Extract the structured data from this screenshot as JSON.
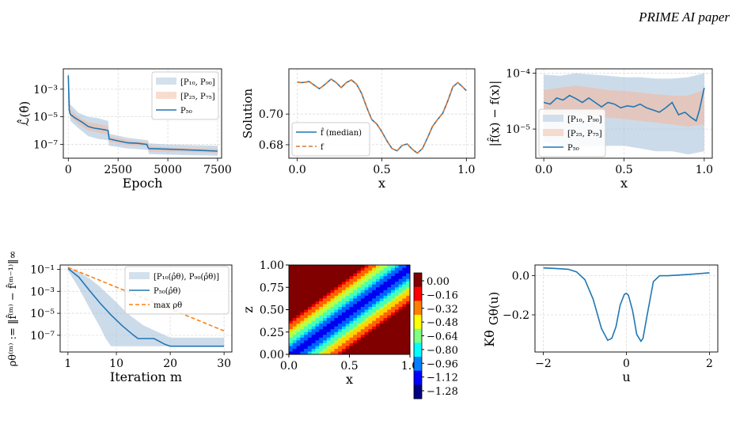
{
  "header": {
    "running_title": "PRIME AI paper"
  },
  "chart_data": [
    {
      "id": "loss",
      "type": "line",
      "ylabel": "ℒ̂(θ̂)",
      "xlabel": "Epoch",
      "ylog": true,
      "ylim": [
        1e-08,
        0.03
      ],
      "xlim": [
        -250,
        7700
      ],
      "xticks": [
        0,
        2500,
        5000,
        7500
      ],
      "xtick_labels": [
        "0",
        "2500",
        "5000",
        "7500"
      ],
      "yticks": [
        1e-07,
        1e-05,
        0.001
      ],
      "ytick_labels": [
        "10⁻⁷",
        "10⁻⁵",
        "10⁻³"
      ],
      "legend": {
        "position": "top-right",
        "entries": [
          "[P₁₀, P₉₀]",
          "[P₂₅, P₇₅]",
          "P₅₀"
        ]
      },
      "series": [
        {
          "name": "P₅₀",
          "x": [
            0,
            50,
            100,
            200,
            300,
            500,
            700,
            1000,
            1300,
            1600,
            1900,
            2000,
            2050,
            2500,
            3000,
            3500,
            3950,
            4000,
            4050,
            5000,
            6000,
            7000,
            7500
          ],
          "y": [
            0.01,
            3e-05,
            1.5e-05,
            1.2e-05,
            9e-06,
            6e-06,
            4e-06,
            2e-06,
            1.5e-06,
            1.3e-06,
            1.1e-06,
            1e-06,
            2.5e-07,
            1.8e-07,
            1.3e-07,
            1.2e-07,
            1e-07,
            6e-08,
            5e-08,
            4.5e-08,
            4e-08,
            3.5e-08,
            3.3e-08
          ]
        },
        {
          "name": "[P₁₀, P₉₀]",
          "x": [
            0,
            100,
            500,
            1000,
            1500,
            2000,
            2050,
            3000,
            4000,
            4050,
            5000,
            7500
          ],
          "low": [
            0.008,
            5e-06,
            1.5e-06,
            4e-07,
            2.5e-07,
            2e-07,
            8e-08,
            5e-08,
            4e-08,
            2e-08,
            1.8e-08,
            1.5e-08
          ],
          "high": [
            0.012,
            8e-05,
            2e-05,
            1e-05,
            8e-06,
            5e-06,
            6e-07,
            3e-07,
            2e-07,
            1.2e-07,
            1e-07,
            8e-08
          ]
        },
        {
          "name": "[P₂₅, P₇₅]",
          "x": [
            0,
            100,
            500,
            1000,
            1500,
            2000,
            2050,
            3000,
            4000,
            4050,
            5000,
            7500
          ],
          "low": [
            0.009,
            1e-05,
            3e-06,
            1e-06,
            7e-07,
            5e-07,
            1.5e-07,
            9e-08,
            7e-08,
            3e-08,
            3e-08,
            2.5e-08
          ],
          "high": [
            0.011,
            4e-05,
            1e-05,
            4e-06,
            3e-06,
            2.2e-06,
            4e-07,
            2e-07,
            1.4e-07,
            8e-08,
            6e-08,
            5e-08
          ]
        }
      ]
    },
    {
      "id": "solution",
      "type": "line",
      "ylabel": "Solution",
      "xlabel": "x",
      "ylim": [
        0.6712,
        0.7295
      ],
      "xlim": [
        -0.05,
        1.05
      ],
      "xticks": [
        0,
        0.5,
        1
      ],
      "xtick_labels": [
        "0.0",
        "0.5",
        "1.0"
      ],
      "yticks": [
        0.68,
        0.7
      ],
      "ytick_labels": [
        "0.68",
        "0.70"
      ],
      "legend": {
        "position": "bottom-left",
        "entries": [
          "f̂ (median)",
          "f"
        ]
      },
      "series": [
        {
          "name": "f̂ (median)",
          "color": "#1f77b4",
          "x": [
            0,
            0.03,
            0.07,
            0.1,
            0.13,
            0.16,
            0.2,
            0.23,
            0.26,
            0.29,
            0.32,
            0.35,
            0.38,
            0.41,
            0.44,
            0.47,
            0.5,
            0.53,
            0.56,
            0.59,
            0.62,
            0.65,
            0.68,
            0.71,
            0.74,
            0.77,
            0.8,
            0.83,
            0.86,
            0.89,
            0.92,
            0.95,
            0.98,
            1.0
          ],
          "y": [
            0.7208,
            0.7205,
            0.7212,
            0.7188,
            0.7165,
            0.719,
            0.7228,
            0.7205,
            0.7172,
            0.7205,
            0.7222,
            0.7195,
            0.7135,
            0.7045,
            0.6965,
            0.6935,
            0.6885,
            0.6825,
            0.6775,
            0.676,
            0.6795,
            0.6805,
            0.677,
            0.6745,
            0.6775,
            0.6845,
            0.692,
            0.6965,
            0.7005,
            0.7085,
            0.7178,
            0.7205,
            0.7175,
            0.7152
          ]
        },
        {
          "name": "f",
          "color": "#e0782f",
          "dash": true,
          "same_as": 0
        }
      ]
    },
    {
      "id": "abs-error",
      "type": "line",
      "ylabel": "|f̂(x) − f(x)|",
      "xlabel": "x",
      "ylog": true,
      "ylim": [
        3e-06,
        0.00012
      ],
      "xlim": [
        -0.05,
        1.05
      ],
      "xticks": [
        0,
        0.5,
        1
      ],
      "xtick_labels": [
        "0.0",
        "0.5",
        "1.0"
      ],
      "yticks": [
        1e-05,
        0.0001
      ],
      "ytick_labels": [
        "10⁻⁵",
        "10⁻⁴"
      ],
      "legend": {
        "position": "bottom-left",
        "entries": [
          "[P₁₀, P₉₀]",
          "[P₂₅, P₇₅]",
          "P₅₀"
        ]
      },
      "series": [
        {
          "name": "P₅₀",
          "x": [
            0,
            0.04,
            0.08,
            0.12,
            0.16,
            0.2,
            0.24,
            0.28,
            0.32,
            0.36,
            0.4,
            0.44,
            0.48,
            0.52,
            0.56,
            0.6,
            0.64,
            0.68,
            0.72,
            0.76,
            0.8,
            0.84,
            0.88,
            0.92,
            0.95,
            0.97,
            1.0
          ],
          "y": [
            3e-05,
            2.8e-05,
            3.6e-05,
            3.3e-05,
            4e-05,
            3.5e-05,
            3e-05,
            3.6e-05,
            3e-05,
            2.5e-05,
            3e-05,
            2.8e-05,
            2.4e-05,
            2.6e-05,
            2.5e-05,
            2.8e-05,
            2.4e-05,
            2.2e-05,
            2e-05,
            2.4e-05,
            3e-05,
            1.8e-05,
            2e-05,
            1.6e-05,
            1.4e-05,
            2.2e-05,
            5.5e-05
          ]
        },
        {
          "name": "[P₁₀, P₉₀]",
          "x": [
            0,
            0.1,
            0.2,
            0.3,
            0.4,
            0.5,
            0.6,
            0.7,
            0.8,
            0.9,
            1.0
          ],
          "low": [
            6e-06,
            5e-06,
            4.5e-06,
            5e-06,
            5e-06,
            5e-06,
            4.5e-06,
            4e-06,
            4e-06,
            3.5e-06,
            4e-06
          ],
          "high": [
            9.5e-05,
            9e-05,
            0.0001,
            9.5e-05,
            9e-05,
            8.5e-05,
            8.5e-05,
            8e-05,
            8e-05,
            8.5e-05,
            0.0001
          ]
        },
        {
          "name": "[P₂₅, P₇₅]",
          "x": [
            0,
            0.1,
            0.2,
            0.3,
            0.4,
            0.5,
            0.6,
            0.7,
            0.8,
            0.9,
            1.0
          ],
          "low": [
            1.8e-05,
            1.8e-05,
            2e-05,
            1.7e-05,
            1.6e-05,
            1.5e-05,
            1.4e-05,
            1.3e-05,
            1.2e-05,
            1.1e-05,
            1.2e-05
          ],
          "high": [
            5e-05,
            5.5e-05,
            6e-05,
            5.5e-05,
            5e-05,
            4.8e-05,
            4.5e-05,
            4.2e-05,
            4e-05,
            4e-05,
            5e-05
          ]
        }
      ]
    },
    {
      "id": "rho",
      "type": "line",
      "ylabel": "ρθ⁽ᵐ⁾ := ‖f̂⁽ᵐ⁾ − f̂⁽ᵐ⁻¹⁾‖∞",
      "xlabel": "Iteration m",
      "ylog": true,
      "ylim": [
        3e-09,
        0.25
      ],
      "xlim": [
        -0.45,
        31.45
      ],
      "xticks": [
        1,
        10,
        20,
        30
      ],
      "xtick_labels": [
        "1",
        "10",
        "20",
        "30"
      ],
      "yticks": [
        1e-07,
        1e-05,
        0.001,
        0.1
      ],
      "ytick_labels": [
        "10⁻⁷",
        "10⁻⁵",
        "10⁻³",
        "10⁻¹"
      ],
      "legend": {
        "position": "top-right",
        "entries": [
          "[P₁₀(ρ̂θ), P₉₀(ρ̂θ)]",
          "P₅₀(ρ̂θ)",
          "max ρθ"
        ]
      },
      "series": [
        {
          "name": "P₅₀(ρ̂θ)",
          "x": [
            1,
            3,
            5,
            7,
            9,
            11,
            13,
            14,
            16,
            17,
            19,
            20,
            30
          ],
          "y": [
            0.12,
            0.02,
            0.0012,
            8e-05,
            7e-06,
            8e-07,
            1.2e-07,
            5e-08,
            5e-08,
            5e-08,
            1.5e-08,
            1e-08,
            1e-08
          ]
        },
        {
          "name": "[P₁₀(ρ̂θ), P₉₀(ρ̂θ)]",
          "x": [
            1,
            3,
            5,
            7,
            8,
            9,
            10,
            12,
            15,
            20,
            30
          ],
          "low": [
            0.08,
            0.002,
            3e-05,
            5e-07,
            5e-08,
            1e-08,
            1e-08,
            1e-08,
            1e-08,
            1e-08,
            1e-08
          ],
          "high": [
            0.14,
            0.06,
            0.015,
            0.0025,
            0.0008,
            0.0003,
            0.0001,
            1e-05,
            8e-07,
            6e-08,
            6e-08
          ]
        },
        {
          "name": "max ρθ",
          "color": "#ff7f0e",
          "dash": true,
          "x": [
            1,
            30
          ],
          "y": [
            0.15,
            2.5e-07
          ]
        }
      ]
    },
    {
      "id": "kernel",
      "type": "heatmap",
      "xlabel": "x",
      "ylabel": "z",
      "colorbar_label": "Kθ",
      "xticks": [
        0,
        0.5,
        1
      ],
      "xtick_labels": [
        "0.0",
        "0.5",
        "1.0"
      ],
      "yticks": [
        0,
        0.25,
        0.5,
        0.75,
        1
      ],
      "ytick_labels": [
        "0.00",
        "0.25",
        "0.50",
        "0.75",
        "1.00"
      ],
      "colorbar_ticks": [
        "0.00",
        "−0.16",
        "−0.32",
        "−0.48",
        "−0.64",
        "−0.80",
        "−0.96",
        "−1.12",
        "−1.28"
      ],
      "value_range": [
        -1.36,
        0.08
      ]
    },
    {
      "id": "G",
      "type": "line",
      "ylabel": "Gθ(u)",
      "xlabel": "u",
      "ylim": [
        -0.39,
        0.055
      ],
      "xlim": [
        -2.2,
        2.2
      ],
      "xticks": [
        -2,
        0,
        2
      ],
      "xtick_labels": [
        "−2",
        "0",
        "2"
      ],
      "yticks": [
        -0.2,
        0
      ],
      "ytick_labels": [
        "−0.2",
        "0.0"
      ],
      "series": [
        {
          "name": "",
          "x": [
            -2,
            -1.7,
            -1.4,
            -1.2,
            -1.0,
            -0.8,
            -0.6,
            -0.45,
            -0.35,
            -0.25,
            -0.15,
            -0.05,
            0.0,
            0.05,
            0.15,
            0.25,
            0.35,
            0.4,
            0.5,
            0.65,
            0.8,
            1.0,
            1.5,
            2.0
          ],
          "y": [
            0.04,
            0.037,
            0.033,
            0.02,
            -0.02,
            -0.12,
            -0.27,
            -0.33,
            -0.32,
            -0.26,
            -0.15,
            -0.095,
            -0.09,
            -0.1,
            -0.18,
            -0.3,
            -0.335,
            -0.32,
            -0.2,
            -0.03,
            0.0,
            0.0,
            0.007,
            0.015
          ]
        }
      ]
    }
  ]
}
